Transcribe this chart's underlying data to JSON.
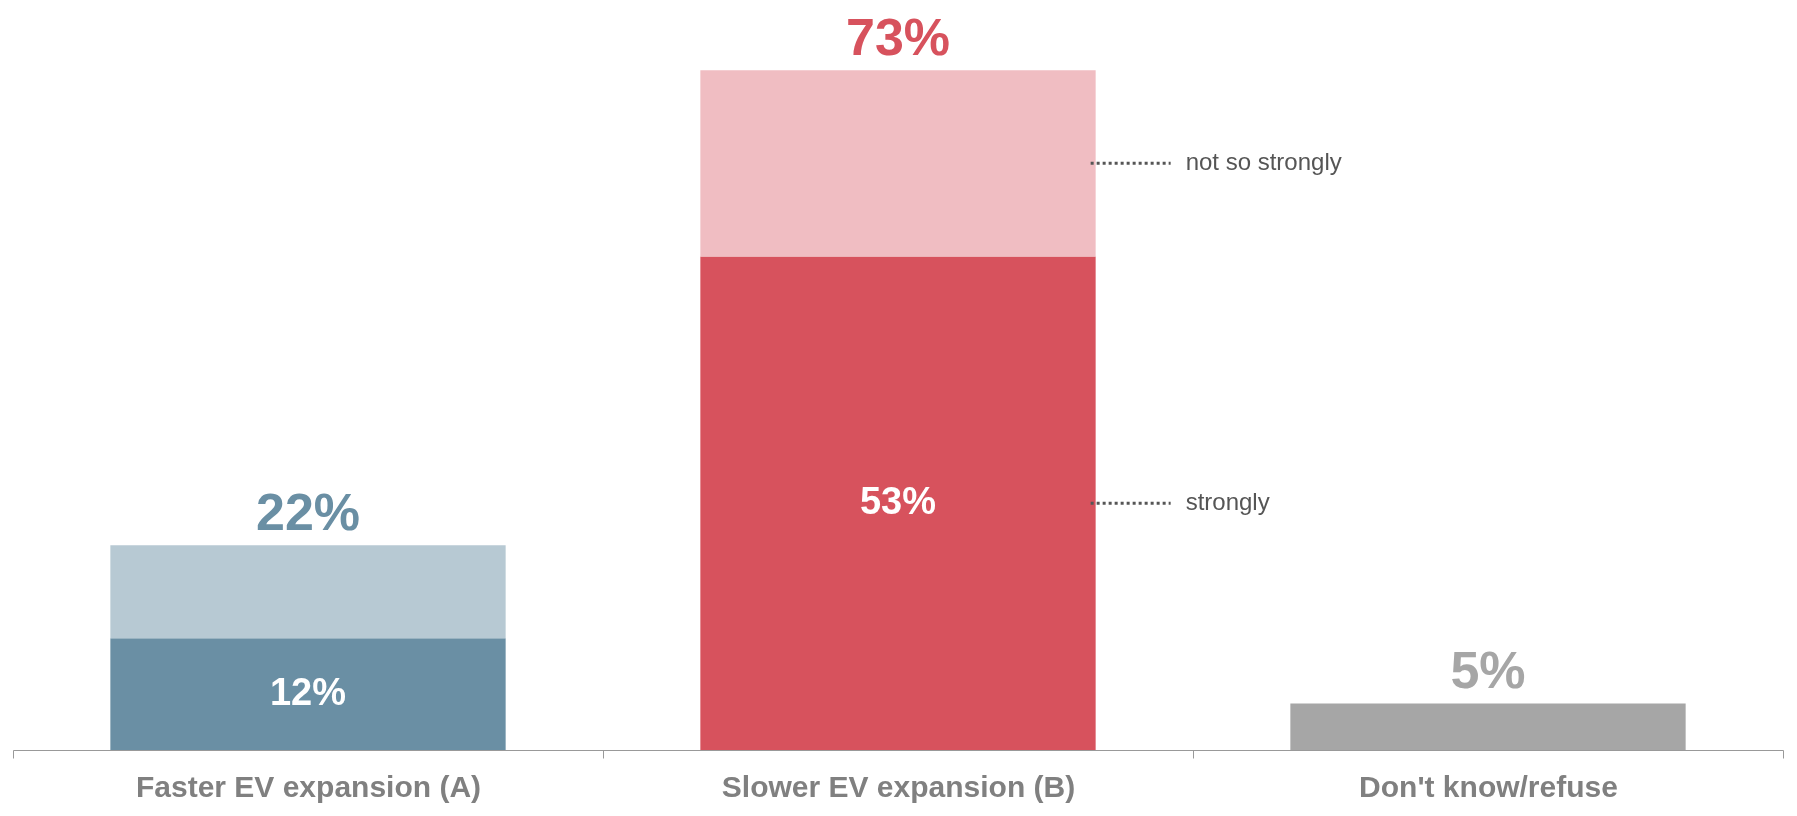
{
  "chart_data": {
    "type": "bar",
    "stacked": true,
    "categories": [
      "Faster EV expansion (A)",
      "Slower EV expansion (B)",
      "Don't know/refuse"
    ],
    "series": [
      {
        "name": "strongly",
        "values": [
          12,
          53,
          5
        ],
        "colors": [
          "#6a8fa4",
          "#d7525d",
          "#a6a6a6"
        ],
        "value_labels": [
          "12%",
          "53%",
          null
        ]
      },
      {
        "name": "not so strongly",
        "values": [
          10,
          20,
          null
        ],
        "colors": [
          "#b7c9d3",
          "#f0bdc2",
          null
        ]
      }
    ],
    "totals": [
      "22%",
      "73%",
      "5%"
    ],
    "ylim": [
      0,
      80
    ]
  }
}
